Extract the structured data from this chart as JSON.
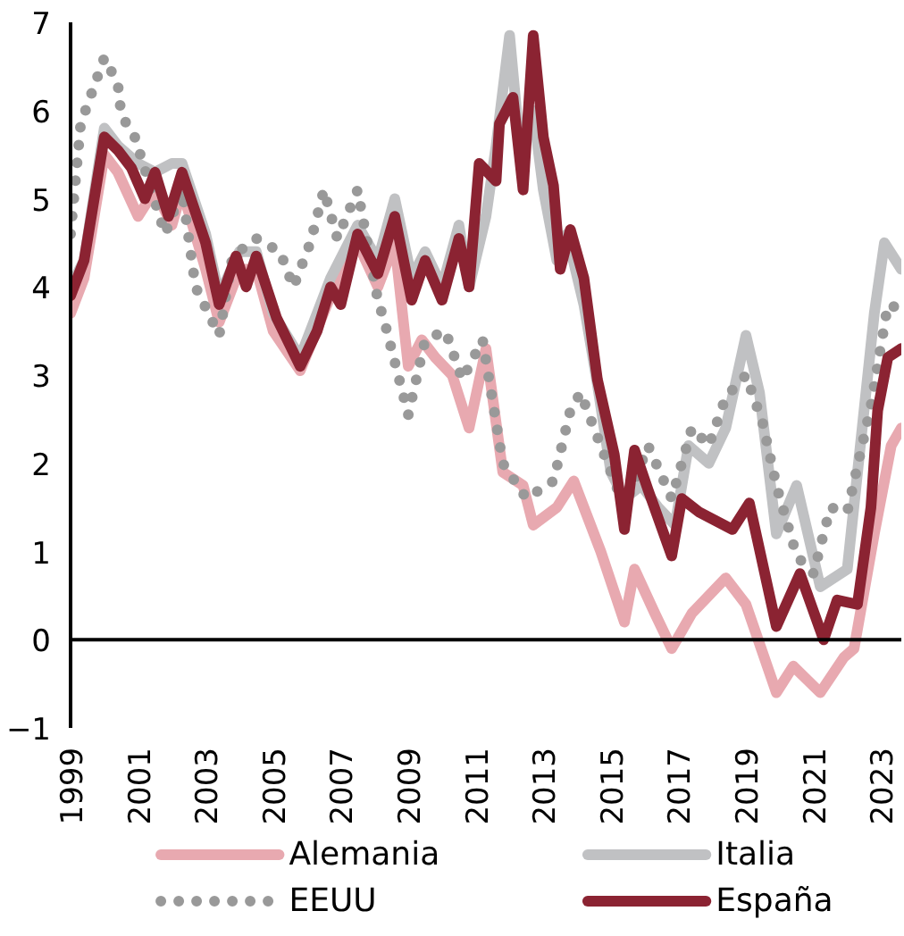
{
  "chart_data": {
    "type": "line",
    "xlim": [
      1999,
      2023.6
    ],
    "ylim": [
      -1,
      7
    ],
    "xticks": [
      1999,
      2001,
      2003,
      2005,
      2007,
      2009,
      2011,
      2013,
      2015,
      2017,
      2019,
      2021,
      2023
    ],
    "yticks": [
      -1,
      0,
      1,
      2,
      3,
      4,
      5,
      6,
      7
    ],
    "grid": false,
    "legend": "bottom",
    "marker": "none",
    "ref_lines": [
      {
        "axis": "y",
        "value": 0,
        "color": "#000000"
      }
    ],
    "series": [
      {
        "name": "Alemania",
        "color": "#e8a9b0",
        "line_style": "solid",
        "x": [
          1999.0,
          1999.4,
          2000.0,
          2000.4,
          2001.0,
          2001.5,
          2002.0,
          2002.3,
          2003.0,
          2003.4,
          2004.0,
          2004.5,
          2005.0,
          2005.8,
          2006.7,
          2007.5,
          2008.1,
          2008.6,
          2009.0,
          2009.4,
          2009.8,
          2010.3,
          2010.8,
          2011.3,
          2011.8,
          2012.4,
          2012.7,
          2013.4,
          2013.9,
          2014.7,
          2015.4,
          2015.7,
          2016.3,
          2016.8,
          2017.4,
          2017.9,
          2018.4,
          2019.0,
          2019.9,
          2020.4,
          2021.2,
          2021.9,
          2022.2,
          2022.8,
          2023.3,
          2023.6
        ],
        "values": [
          3.7,
          4.1,
          5.5,
          5.3,
          4.8,
          5.1,
          4.7,
          5.1,
          4.2,
          3.6,
          4.2,
          4.2,
          3.5,
          3.05,
          3.9,
          4.5,
          4.0,
          4.5,
          3.1,
          3.4,
          3.2,
          3.0,
          2.4,
          3.3,
          1.9,
          1.75,
          1.3,
          1.5,
          1.8,
          1.0,
          0.2,
          0.8,
          0.3,
          -0.1,
          0.3,
          0.5,
          0.7,
          0.4,
          -0.6,
          -0.3,
          -0.6,
          -0.2,
          -0.1,
          1.2,
          2.2,
          2.4
        ]
      },
      {
        "name": "Italia",
        "color": "#c0c1c3",
        "line_style": "solid",
        "x": [
          1999.0,
          1999.4,
          2000.0,
          2000.4,
          2001.0,
          2001.5,
          2002.0,
          2002.3,
          2003.0,
          2003.4,
          2004.0,
          2004.5,
          2005.0,
          2005.8,
          2006.7,
          2007.5,
          2008.1,
          2008.6,
          2009.1,
          2009.5,
          2010.0,
          2010.5,
          2010.8,
          2011.3,
          2011.6,
          2012.0,
          2012.3,
          2012.7,
          2013.0,
          2013.4,
          2013.7,
          2014.2,
          2014.6,
          2015.0,
          2015.4,
          2015.9,
          2016.4,
          2016.9,
          2017.3,
          2017.9,
          2018.4,
          2019.0,
          2019.4,
          2019.9,
          2020.5,
          2021.2,
          2022.0,
          2022.8,
          2023.1,
          2023.6
        ],
        "values": [
          4.0,
          4.3,
          5.8,
          5.6,
          5.4,
          5.3,
          5.4,
          5.4,
          4.6,
          3.9,
          4.4,
          4.4,
          3.7,
          3.2,
          4.1,
          4.7,
          4.3,
          5.0,
          4.1,
          4.4,
          4.0,
          4.7,
          4.0,
          4.8,
          5.6,
          6.85,
          5.6,
          6.0,
          5.1,
          4.3,
          4.6,
          3.8,
          2.9,
          1.9,
          1.6,
          1.75,
          1.5,
          1.3,
          2.2,
          2.0,
          2.4,
          3.45,
          2.8,
          1.2,
          1.75,
          0.6,
          0.8,
          3.7,
          4.5,
          4.2
        ]
      },
      {
        "name": "EEUU",
        "color": "#999999",
        "line_style": "dotted",
        "x": [
          1999.0,
          1999.3,
          2000.0,
          2000.4,
          2000.5,
          2000.9,
          2001.8,
          2002.3,
          2002.7,
          2003.4,
          2003.8,
          2004.5,
          2005.2,
          2005.6,
          2006.1,
          2006.5,
          2006.9,
          2007.5,
          2008.1,
          2008.3,
          2009.0,
          2009.5,
          2010.1,
          2010.6,
          2011.2,
          2011.8,
          2012.5,
          2013.3,
          2013.8,
          2014.1,
          2014.8,
          2015.4,
          2016.1,
          2016.8,
          2017.4,
          2017.9,
          2018.4,
          2019.0,
          2019.5,
          2019.9,
          2020.5,
          2021.0,
          2021.5,
          2022.0,
          2022.7,
          2023.2,
          2023.6
        ],
        "values": [
          4.6,
          5.85,
          6.6,
          6.3,
          5.95,
          5.7,
          4.6,
          5.1,
          4.0,
          3.45,
          4.35,
          4.55,
          4.4,
          4.0,
          4.5,
          5.1,
          4.55,
          5.1,
          3.85,
          3.6,
          2.55,
          3.4,
          3.5,
          2.95,
          3.4,
          2.0,
          1.6,
          1.8,
          2.6,
          2.8,
          2.1,
          1.5,
          2.2,
          1.6,
          2.4,
          2.2,
          2.75,
          3.0,
          2.45,
          1.75,
          0.95,
          0.75,
          1.5,
          1.45,
          2.65,
          3.8,
          3.75
        ]
      },
      {
        "name": "España",
        "color": "#8b2332",
        "line_style": "solid",
        "x": [
          1999.0,
          1999.4,
          2000.0,
          2000.4,
          2000.8,
          2001.2,
          2001.5,
          2001.9,
          2002.3,
          2003.0,
          2003.4,
          2003.9,
          2004.2,
          2004.5,
          2005.1,
          2005.8,
          2006.3,
          2006.7,
          2007.0,
          2007.5,
          2008.1,
          2008.6,
          2009.1,
          2009.5,
          2010.0,
          2010.5,
          2010.8,
          2011.1,
          2011.6,
          2011.7,
          2012.1,
          2012.4,
          2012.7,
          2013.0,
          2013.3,
          2013.5,
          2013.8,
          2014.2,
          2014.6,
          2015.1,
          2015.4,
          2015.7,
          2016.1,
          2016.8,
          2017.1,
          2017.6,
          2018.6,
          2019.1,
          2019.9,
          2020.6,
          2021.3,
          2021.7,
          2022.3,
          2022.7,
          2022.9,
          2023.2,
          2023.6
        ],
        "values": [
          3.9,
          4.3,
          5.7,
          5.55,
          5.35,
          5.0,
          5.3,
          4.8,
          5.3,
          4.5,
          3.8,
          4.35,
          4.0,
          4.35,
          3.65,
          3.1,
          3.5,
          4.0,
          3.8,
          4.6,
          4.15,
          4.8,
          3.85,
          4.3,
          3.85,
          4.55,
          4.0,
          5.4,
          5.2,
          5.85,
          6.15,
          5.1,
          6.85,
          5.7,
          5.15,
          4.2,
          4.65,
          4.1,
          2.95,
          2.1,
          1.25,
          2.15,
          1.7,
          0.95,
          1.6,
          1.45,
          1.25,
          1.55,
          0.15,
          0.75,
          0.0,
          0.45,
          0.4,
          1.5,
          2.6,
          3.2,
          3.3
        ]
      }
    ]
  }
}
